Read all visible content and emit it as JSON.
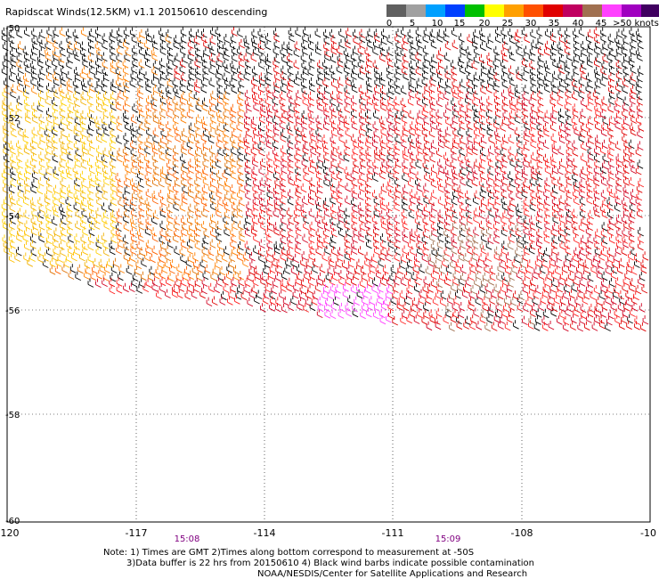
{
  "title": "Rapidscat Winds(12.5KM) v1.1 20150610 descending",
  "legend": {
    "colors": [
      "#606060",
      "#a0a0a0",
      "#00a0ff",
      "#0040ff",
      "#00c000",
      "#ffff00",
      "#ffa000",
      "#ff5000",
      "#e00000",
      "#c00060",
      "#a07050",
      "#ff40ff",
      "#a000c0",
      "#400060"
    ],
    "labels": [
      "0",
      "5",
      "10",
      "15",
      "20",
      "25",
      "30",
      "35",
      "40",
      "45",
      ">50 knots"
    ]
  },
  "axes": {
    "x_labels": [
      "-120",
      "-117",
      "-114",
      "-111",
      "-108",
      "-10"
    ],
    "y_labels": [
      "-50",
      "-52",
      "-54",
      "-56",
      "-58",
      "-60"
    ]
  },
  "times": [
    "15:08",
    "15:09"
  ],
  "notes": {
    "line1": "Note: 1) Times are GMT 2)Times along bottom correspond to measurement at -50S",
    "line2": "3)Data buffer is 22 hrs from 20150610 4) Black wind barbs indicate possible contamination",
    "line3": "NOAA/NESDIS/Center for Satellite Applications and Research"
  }
}
